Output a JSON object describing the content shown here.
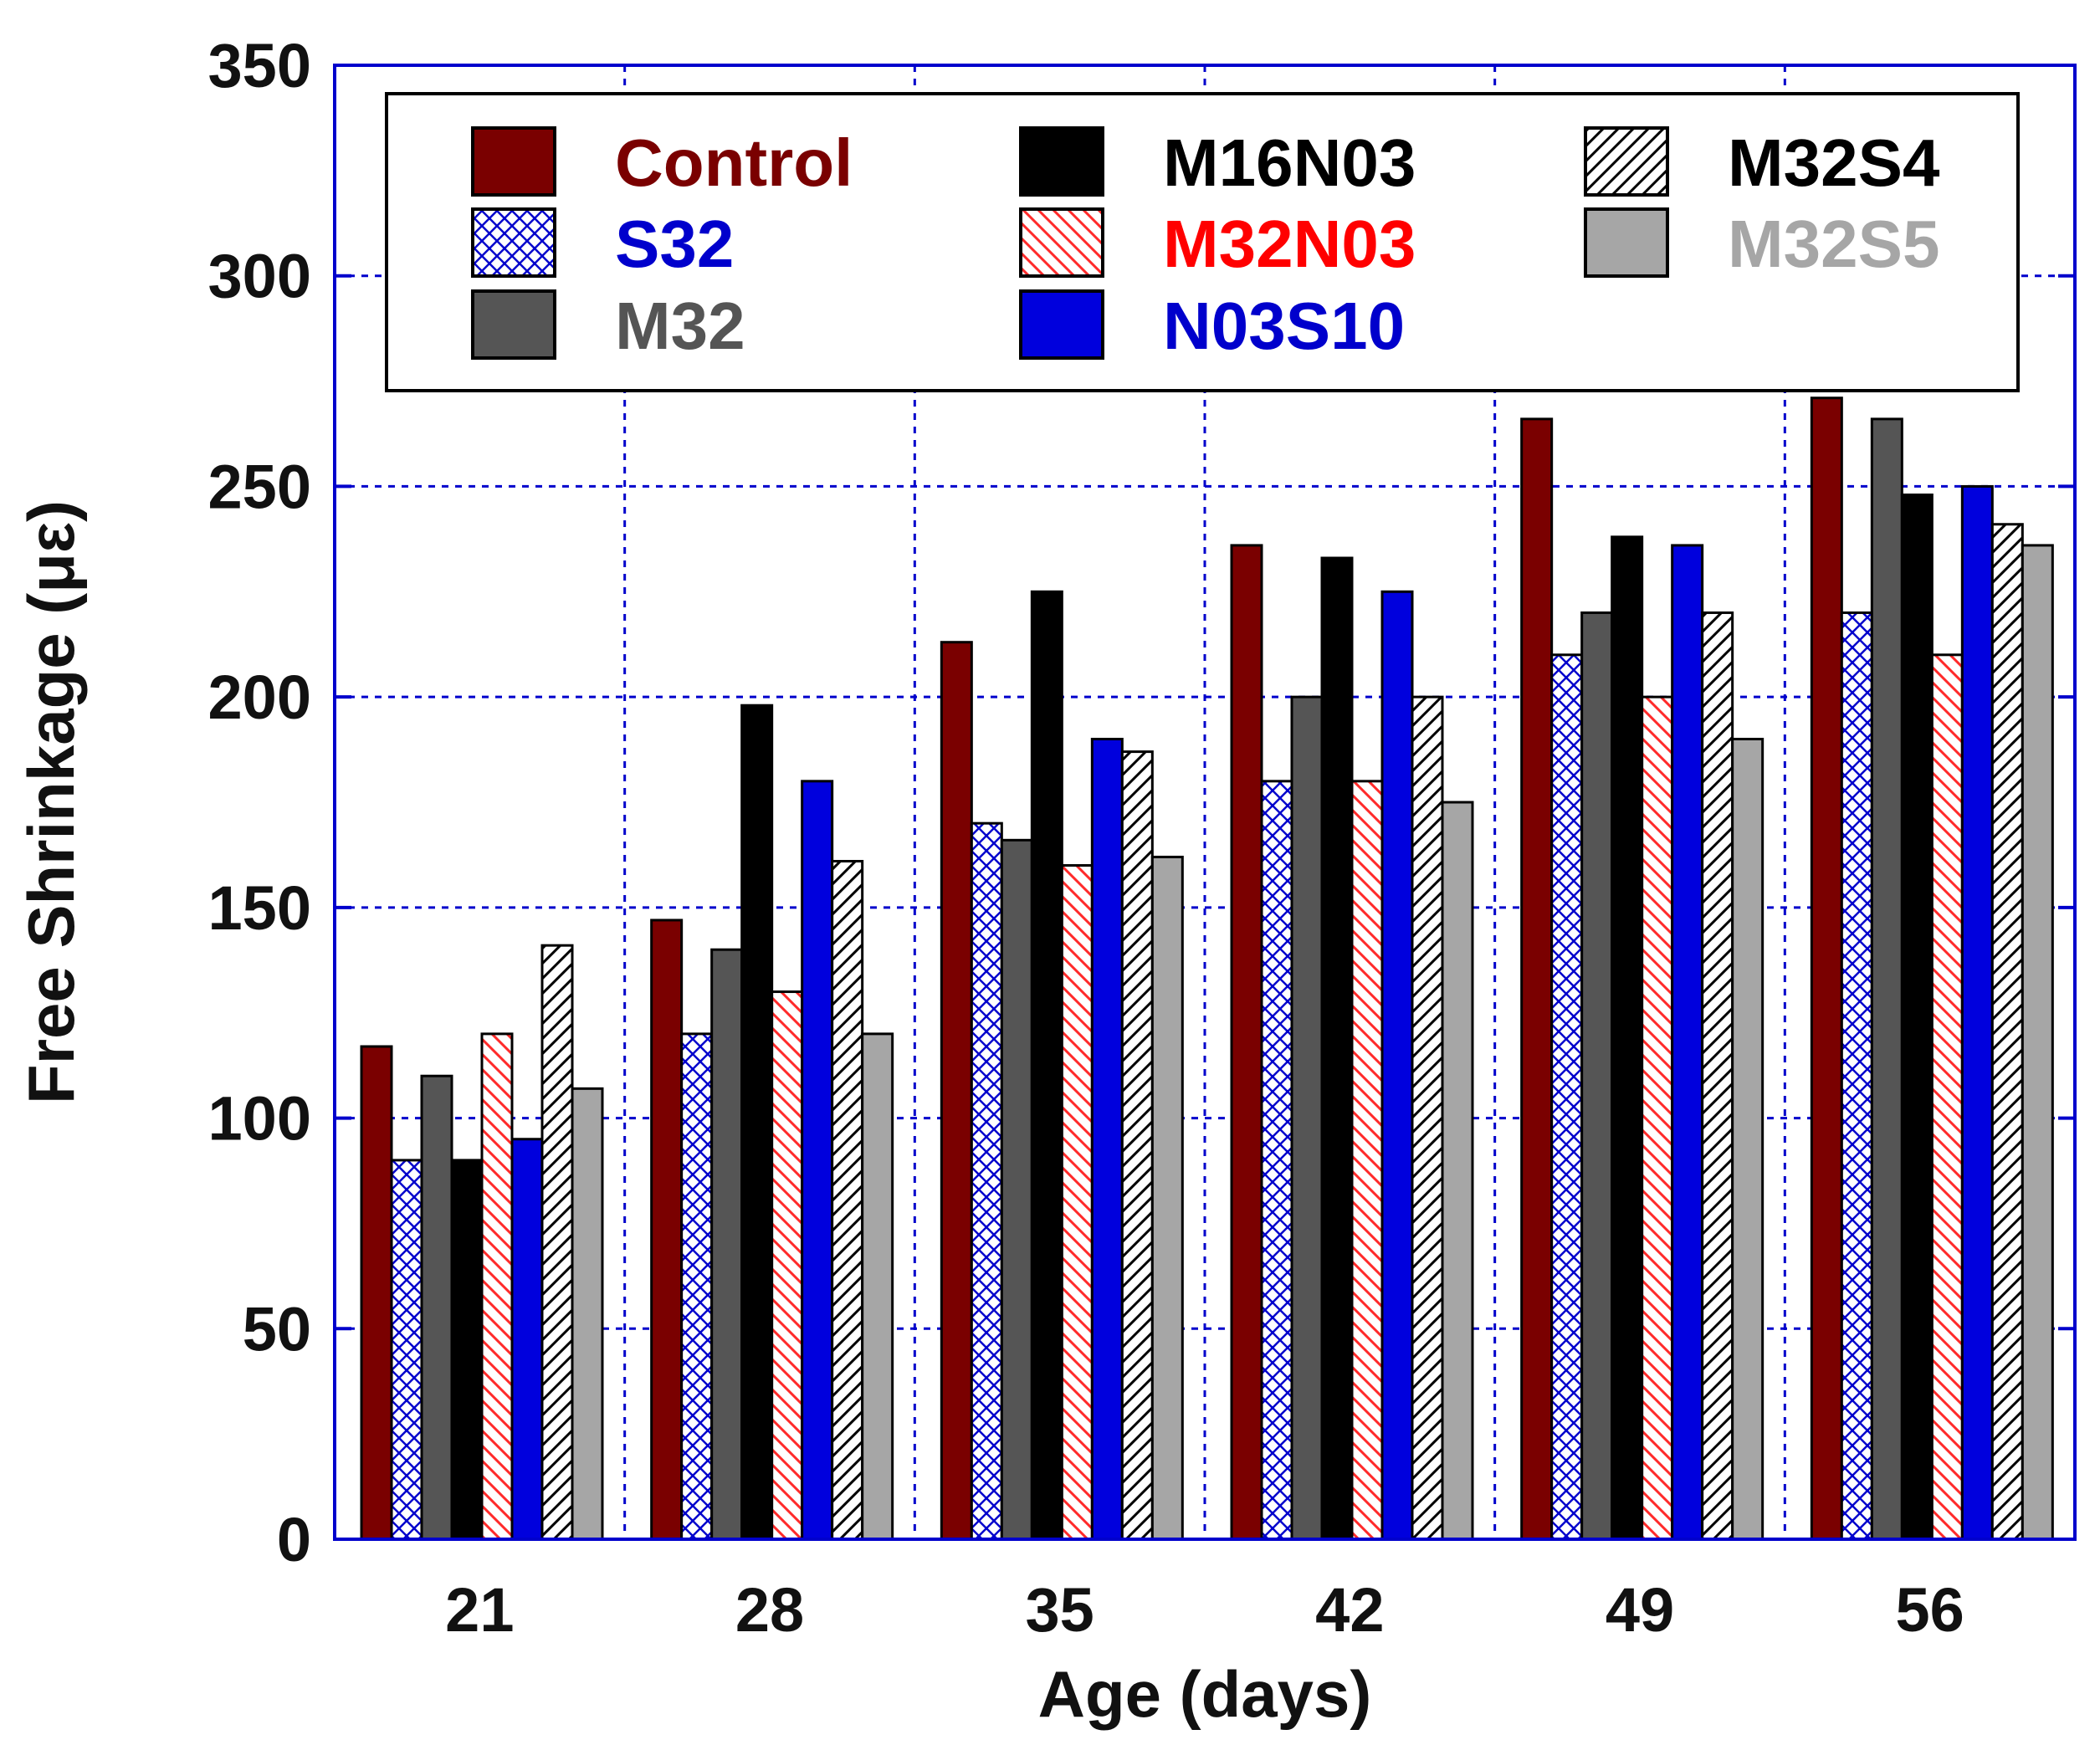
{
  "chart_data": {
    "type": "bar",
    "xlabel": "Age (days)",
    "ylabel": "Free Shrinkage (με)",
    "categories": [
      "21",
      "28",
      "35",
      "42",
      "49",
      "56"
    ],
    "ylim": [
      0,
      350
    ],
    "yticks": [
      "0",
      "50",
      "100",
      "150",
      "200",
      "250",
      "300",
      "350"
    ],
    "grid": true,
    "legend_position": "top",
    "series": [
      {
        "name": "Control",
        "values": [
          117,
          147,
          213,
          236,
          266,
          271
        ],
        "fill": "#7a0000",
        "pattern": "solid",
        "label_color": "#7a0000"
      },
      {
        "name": "S32",
        "values": [
          90,
          120,
          170,
          180,
          210,
          220
        ],
        "fill": "#0000cc",
        "pattern": "crosshatch",
        "label_color": "#0000cc"
      },
      {
        "name": "M32",
        "values": [
          110,
          140,
          166,
          200,
          220,
          266
        ],
        "fill": "#555555",
        "pattern": "solid",
        "label_color": "#555555"
      },
      {
        "name": "M16N03",
        "values": [
          90,
          198,
          225,
          233,
          238,
          248
        ],
        "fill": "#000000",
        "pattern": "solid",
        "label_color": "#000000"
      },
      {
        "name": "M32N03",
        "values": [
          120,
          130,
          160,
          180,
          200,
          210
        ],
        "fill": "#ff2a2a",
        "pattern": "backslash",
        "label_color": "#ff0000"
      },
      {
        "name": "N03S10",
        "values": [
          95,
          180,
          190,
          225,
          236,
          250
        ],
        "fill": "#0000dd",
        "pattern": "solid",
        "label_color": "#0000cc"
      },
      {
        "name": "M32S4",
        "values": [
          141,
          161,
          187,
          200,
          220,
          241
        ],
        "fill": "#000000",
        "pattern": "slash",
        "label_color": "#000000"
      },
      {
        "name": "M32S5",
        "values": [
          107,
          120,
          162,
          175,
          190,
          236
        ],
        "fill": "#a6a6a6",
        "pattern": "solid",
        "label_color": "#a6a6a6"
      }
    ]
  }
}
